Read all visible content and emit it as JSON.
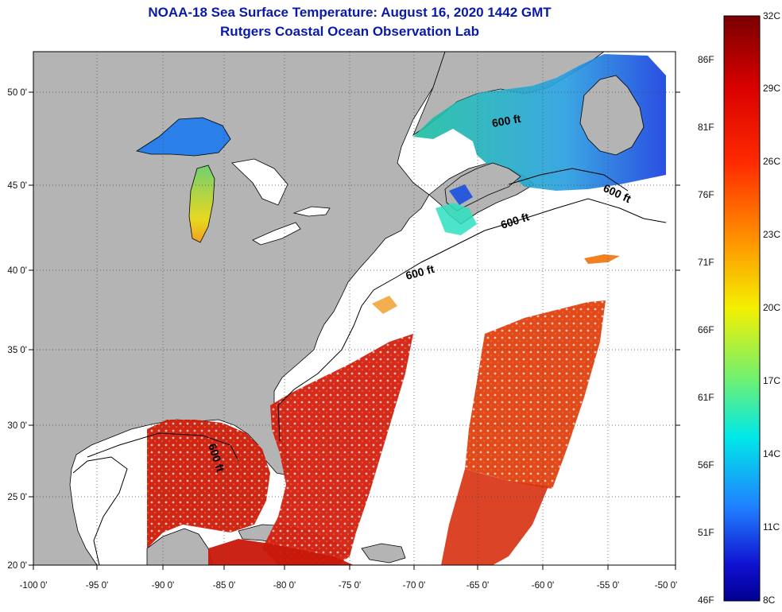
{
  "title_line1": "NOAA-18 Sea Surface Temperature:  August 16, 2020 1442 GMT",
  "title_line2": "Rutgers Coastal Ocean Observation Lab",
  "x_axis_labels": [
    "-100 0'",
    "-95 0'",
    "-90 0'",
    "-85 0'",
    "-80 0'",
    "-75 0'",
    "-70 0'",
    "-65 0'",
    "-60 0'",
    "-55 0'",
    "-50 0'"
  ],
  "y_axis_labels": [
    "50 0'",
    "45 0'",
    "40 0'",
    "35 0'",
    "30 0'",
    "25 0'",
    "20 0'"
  ],
  "isobath_labels": [
    "600 ft",
    "600 ft",
    "600 ft",
    "600 ft",
    "600 ft"
  ],
  "colorbar": {
    "celsius": [
      "32C",
      "29C",
      "26C",
      "23C",
      "20C",
      "17C",
      "14C",
      "11C",
      "8C"
    ],
    "fahrenheit": [
      "86F",
      "81F",
      "76F",
      "71F",
      "66F",
      "61F",
      "56F",
      "51F",
      "46F"
    ]
  },
  "colors": {
    "land": "#b4b4b4",
    "title": "#0a1aa8",
    "warm": "#d42010",
    "cool": "#2ee0c0"
  }
}
